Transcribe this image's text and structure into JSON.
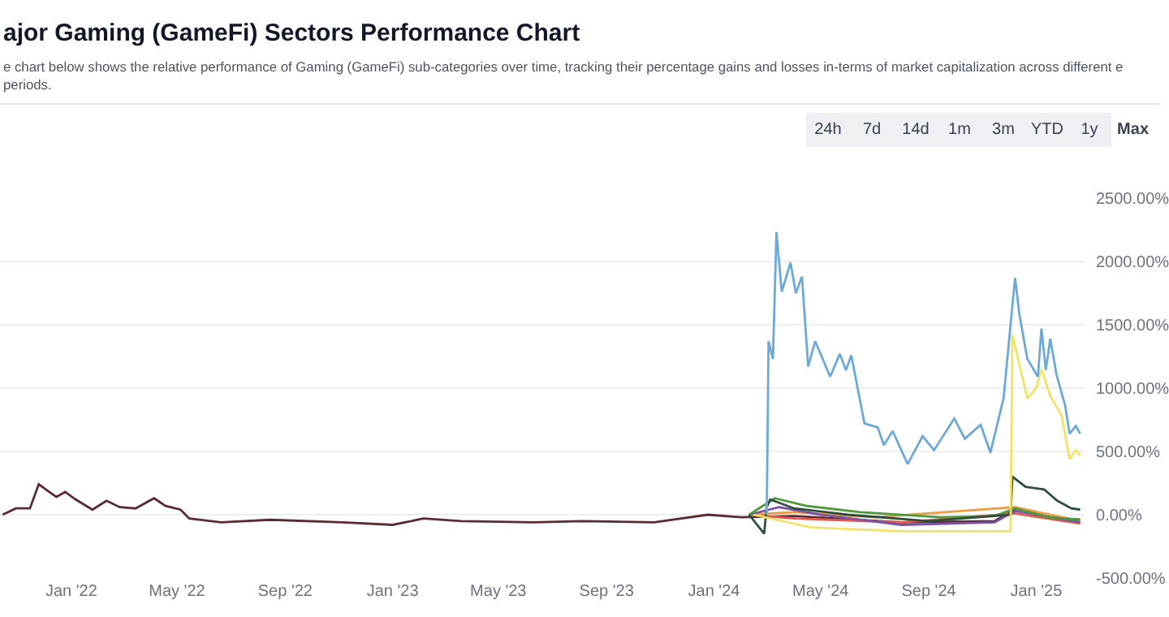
{
  "chart_data": {
    "type": "line",
    "title": "ajor Gaming (GameFi) Sectors Performance Chart",
    "subtitle": "e chart below shows the relative performance of Gaming (GameFi) sub-categories over time, tracking their percentage gains and losses in-terms of market capitalization across different e periods.",
    "annotations": [
      "24h",
      "7d",
      "14d",
      "1m",
      "3m",
      "YTD",
      "1y",
      "Max"
    ],
    "xlim": [
      "2021-10-12",
      "2025-02-25"
    ],
    "xticks": [
      {
        "value": "2022-01-01",
        "label": "Jan '22"
      },
      {
        "value": "2022-05-01",
        "label": "May '22"
      },
      {
        "value": "2022-09-01",
        "label": "Sep '22"
      },
      {
        "value": "2023-01-01",
        "label": "Jan '23"
      },
      {
        "value": "2023-05-01",
        "label": "May '23"
      },
      {
        "value": "2023-09-01",
        "label": "Sep '23"
      },
      {
        "value": "2024-01-01",
        "label": "Jan '24"
      },
      {
        "value": "2024-05-01",
        "label": "May '24"
      },
      {
        "value": "2024-09-01",
        "label": "Sep '24"
      },
      {
        "value": "2025-01-01",
        "label": "Jan '25"
      }
    ],
    "ylim": [
      -500,
      2500
    ],
    "yticks": [
      {
        "value": -500,
        "label": "-500.00%"
      },
      {
        "value": 0,
        "label": "0.00%"
      },
      {
        "value": 500,
        "label": "500.00%"
      },
      {
        "value": 1000,
        "label": "1000.00%"
      },
      {
        "value": 1500,
        "label": "1500.00%"
      },
      {
        "value": 2000,
        "label": "2000.00%"
      },
      {
        "value": 2500,
        "label": "2500.00%"
      }
    ],
    "grid": "y",
    "series": [
      {
        "color": "#5b2a33",
        "x": [
          "2021-10-15",
          "2021-10-30",
          "2021-11-15",
          "2021-11-25",
          "2021-12-05",
          "2021-12-15",
          "2021-12-25",
          "2022-01-06",
          "2022-01-25",
          "2022-02-10",
          "2022-02-25",
          "2022-03-15",
          "2022-04-05",
          "2022-04-18",
          "2022-05-05",
          "2022-05-15",
          "2022-06-20",
          "2022-08-15",
          "2022-11-05",
          "2023-01-01",
          "2023-02-05",
          "2023-03-20",
          "2023-06-10",
          "2023-08-05",
          "2023-10-25",
          "2023-12-25",
          "2024-02-01",
          "2024-04-01",
          "2024-08-01",
          "2024-11-15",
          "2024-12-10",
          "2025-01-15",
          "2025-02-20"
        ],
        "values": [
          0,
          50,
          50,
          240,
          190,
          140,
          180,
          120,
          40,
          110,
          60,
          50,
          130,
          70,
          40,
          -30,
          -60,
          -40,
          -60,
          -80,
          -30,
          -50,
          -60,
          -50,
          -60,
          0,
          -20,
          -10,
          -60,
          -50,
          50,
          -20,
          -40
        ]
      },
      {
        "color": "#e8584a",
        "x": [
          "2024-02-10",
          "2024-04-01",
          "2024-08-01",
          "2024-12-08",
          "2025-02-20"
        ],
        "values": [
          0,
          -30,
          -60,
          10,
          -70
        ]
      },
      {
        "color": "#ee9b3e",
        "x": [
          "2024-02-10",
          "2024-04-01",
          "2024-07-01",
          "2024-12-08",
          "2025-02-20"
        ],
        "values": [
          0,
          20,
          -20,
          60,
          -50
        ]
      },
      {
        "color": "#7a52a8",
        "x": [
          "2024-02-10",
          "2024-03-15",
          "2024-05-01",
          "2024-08-01",
          "2024-11-15",
          "2024-12-08",
          "2025-02-20"
        ],
        "values": [
          0,
          60,
          0,
          -80,
          -60,
          30,
          -60
        ]
      },
      {
        "color": "#4c9a3c",
        "x": [
          "2024-02-10",
          "2024-03-10",
          "2024-04-15",
          "2024-06-15",
          "2024-09-15",
          "2024-11-15",
          "2024-12-08",
          "2025-01-15",
          "2025-02-20"
        ],
        "values": [
          0,
          130,
          70,
          20,
          -20,
          -10,
          50,
          -20,
          -40
        ]
      },
      {
        "color": "#2e4f3a",
        "x": [
          "2024-02-10",
          "2024-02-27",
          "2024-03-01",
          "2024-03-05",
          "2024-04-01",
          "2024-06-01",
          "2024-09-01",
          "2024-12-03",
          "2024-12-05",
          "2024-12-20",
          "2025-01-10",
          "2025-01-25",
          "2025-02-10",
          "2025-02-20"
        ],
        "values": [
          0,
          -150,
          60,
          120,
          50,
          0,
          -50,
          0,
          300,
          220,
          200,
          110,
          50,
          40
        ]
      },
      {
        "color": "#f2e266",
        "x": [
          "2024-02-15",
          "2024-04-20",
          "2024-08-01",
          "2024-12-03",
          "2024-12-05",
          "2024-12-22",
          "2025-01-01",
          "2025-01-07",
          "2025-01-17",
          "2025-01-30",
          "2025-02-08",
          "2025-02-15",
          "2025-02-20"
        ],
        "values": [
          0,
          -100,
          -130,
          -130,
          1420,
          920,
          1000,
          1150,
          940,
          780,
          440,
          510,
          470
        ]
      },
      {
        "color": "#6aa9d8",
        "x": [
          "2024-03-01",
          "2024-03-03",
          "2024-03-08",
          "2024-03-12",
          "2024-03-18",
          "2024-03-28",
          "2024-04-03",
          "2024-04-10",
          "2024-04-17",
          "2024-04-25",
          "2024-05-12",
          "2024-05-23",
          "2024-05-30",
          "2024-06-05",
          "2024-06-20",
          "2024-07-05",
          "2024-07-12",
          "2024-07-22",
          "2024-08-08",
          "2024-08-25",
          "2024-09-07",
          "2024-09-30",
          "2024-10-12",
          "2024-10-30",
          "2024-11-10",
          "2024-11-25",
          "2024-12-08",
          "2024-12-13",
          "2024-12-22",
          "2025-01-03",
          "2025-01-07",
          "2025-01-12",
          "2025-01-17",
          "2025-01-24",
          "2025-02-03",
          "2025-02-08",
          "2025-02-15",
          "2025-02-20"
        ],
        "values": [
          0,
          1370,
          1230,
          2230,
          1760,
          1990,
          1750,
          1880,
          1170,
          1370,
          1090,
          1270,
          1140,
          1260,
          720,
          690,
          550,
          660,
          400,
          620,
          510,
          760,
          600,
          710,
          490,
          920,
          1870,
          1580,
          1230,
          1090,
          1470,
          1140,
          1390,
          1110,
          860,
          640,
          700,
          640
        ]
      }
    ]
  }
}
